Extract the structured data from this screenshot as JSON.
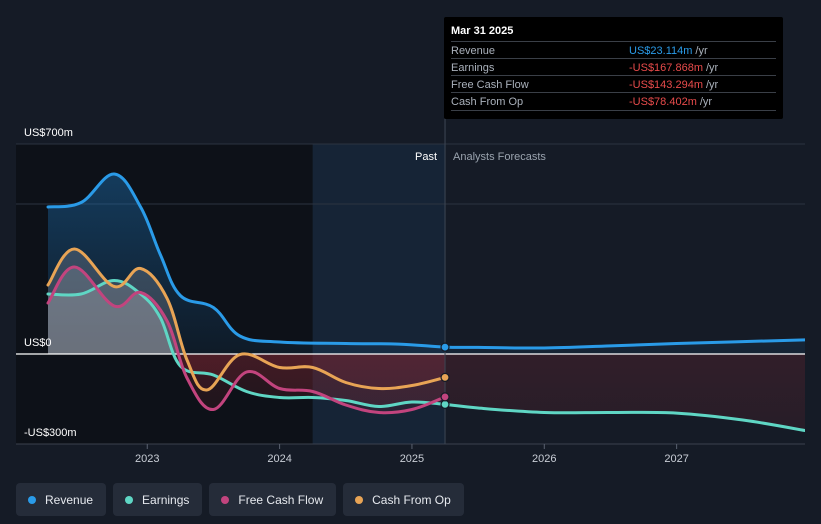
{
  "chart_data": {
    "type": "area",
    "y_axis": {
      "unit": "US$ millions",
      "labels": [
        {
          "value": 700,
          "text": "US$700m"
        },
        {
          "value": 0,
          "text": "US$0"
        },
        {
          "value": -300,
          "text": "-US$300m"
        }
      ],
      "gridlines": [
        700,
        500,
        0,
        -300
      ],
      "ylim": [
        -300,
        700
      ]
    },
    "x_axis": {
      "ticks": [
        "2023",
        "2024",
        "2025",
        "2026",
        "2027"
      ],
      "xlim": [
        2022.25,
        2027.97
      ]
    },
    "divider_x": 2025.25,
    "past_start": 2024.25,
    "region_labels": {
      "past": "Past",
      "forecast": "Analysts Forecasts"
    },
    "series": [
      {
        "name": "Revenue",
        "color": "#2a9be8",
        "points": [
          [
            2022.25,
            490
          ],
          [
            2022.5,
            505
          ],
          [
            2022.75,
            600
          ],
          [
            2022.95,
            490
          ],
          [
            2023.1,
            330
          ],
          [
            2023.25,
            195
          ],
          [
            2023.5,
            155
          ],
          [
            2023.7,
            60
          ],
          [
            2024.0,
            40
          ],
          [
            2024.5,
            35
          ],
          [
            2024.9,
            33
          ],
          [
            2025.25,
            23
          ],
          [
            2025.5,
            22
          ],
          [
            2026.0,
            20
          ],
          [
            2026.5,
            27
          ],
          [
            2027.0,
            35
          ],
          [
            2027.97,
            47
          ]
        ]
      },
      {
        "name": "Earnings",
        "color": "#5fd6c4",
        "points": [
          [
            2022.25,
            200
          ],
          [
            2022.5,
            200
          ],
          [
            2022.75,
            245
          ],
          [
            2022.95,
            200
          ],
          [
            2023.1,
            120
          ],
          [
            2023.25,
            -40
          ],
          [
            2023.5,
            -70
          ],
          [
            2023.75,
            -125
          ],
          [
            2024.0,
            -145
          ],
          [
            2024.25,
            -145
          ],
          [
            2024.5,
            -155
          ],
          [
            2024.75,
            -175
          ],
          [
            2025.0,
            -160
          ],
          [
            2025.25,
            -168
          ],
          [
            2025.5,
            -180
          ],
          [
            2026.0,
            -195
          ],
          [
            2026.5,
            -195
          ],
          [
            2027.0,
            -197
          ],
          [
            2027.5,
            -220
          ],
          [
            2027.97,
            -255
          ]
        ]
      },
      {
        "name": "Free Cash Flow",
        "color": "#c2447e",
        "points": [
          [
            2022.25,
            170
          ],
          [
            2022.45,
            290
          ],
          [
            2022.75,
            160
          ],
          [
            2022.95,
            205
          ],
          [
            2023.15,
            110
          ],
          [
            2023.3,
            -80
          ],
          [
            2023.5,
            -185
          ],
          [
            2023.75,
            -60
          ],
          [
            2024.0,
            -115
          ],
          [
            2024.25,
            -125
          ],
          [
            2024.5,
            -170
          ],
          [
            2024.75,
            -195
          ],
          [
            2025.0,
            -185
          ],
          [
            2025.25,
            -143
          ]
        ]
      },
      {
        "name": "Cash From Op",
        "color": "#e8a455",
        "points": [
          [
            2022.25,
            230
          ],
          [
            2022.45,
            350
          ],
          [
            2022.75,
            225
          ],
          [
            2022.95,
            285
          ],
          [
            2023.15,
            185
          ],
          [
            2023.3,
            -20
          ],
          [
            2023.45,
            -120
          ],
          [
            2023.7,
            -2
          ],
          [
            2024.0,
            -45
          ],
          [
            2024.25,
            -45
          ],
          [
            2024.5,
            -95
          ],
          [
            2024.75,
            -115
          ],
          [
            2025.0,
            -105
          ],
          [
            2025.25,
            -78
          ]
        ]
      }
    ],
    "tooltip": {
      "date": "Mar 31 2025",
      "rows": [
        {
          "name": "Revenue",
          "value": "US$23.114m",
          "unit": "/yr",
          "color": "#2a9be8"
        },
        {
          "name": "Earnings",
          "value": "-US$167.868m",
          "unit": "/yr",
          "color": "#e84b4b"
        },
        {
          "name": "Free Cash Flow",
          "value": "-US$143.294m",
          "unit": "/yr",
          "color": "#e84b4b"
        },
        {
          "name": "Cash From Op",
          "value": "-US$78.402m",
          "unit": "/yr",
          "color": "#e84b4b"
        }
      ]
    },
    "legend": [
      {
        "name": "Revenue",
        "color": "#2a9be8"
      },
      {
        "name": "Earnings",
        "color": "#5fd6c4"
      },
      {
        "name": "Free Cash Flow",
        "color": "#c2447e"
      },
      {
        "name": "Cash From Op",
        "color": "#e8a455"
      }
    ]
  }
}
